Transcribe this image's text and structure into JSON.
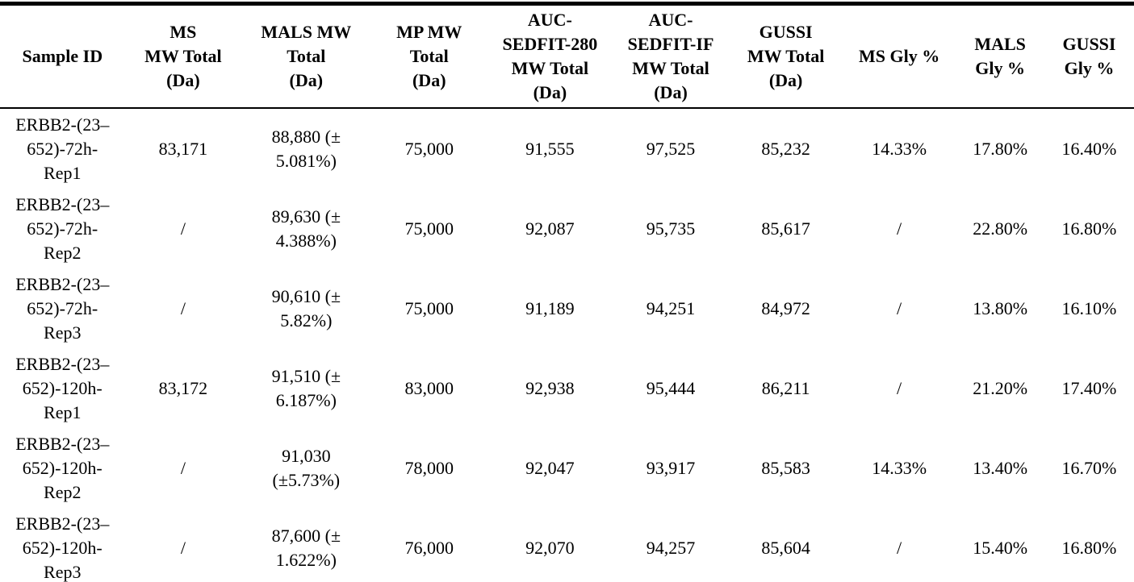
{
  "colors": {
    "text": "#000000",
    "background": "#ffffff",
    "rule": "#000000"
  },
  "table": {
    "headers": [
      "Sample ID",
      "MS\nMW Total\n(Da)",
      "MALS MW\nTotal\n(Da)",
      "MP MW\nTotal\n(Da)",
      "AUC-\nSEDFIT-280\nMW Total\n(Da)",
      "AUC-\nSEDFIT-IF\nMW Total\n(Da)",
      "GUSSI\nMW Total\n(Da)",
      "MS Gly %",
      "MALS\nGly %",
      "GUSSI\nGly %"
    ],
    "rows": [
      [
        "ERBB2-(23–\n652)-72h-\nRep1",
        "83,171",
        "88,880 (±\n5.081%)",
        "75,000",
        "91,555",
        "97,525",
        "85,232",
        "14.33%",
        "17.80%",
        "16.40%"
      ],
      [
        "ERBB2-(23–\n652)-72h-\nRep2",
        "/",
        "89,630 (±\n4.388%)",
        "75,000",
        "92,087",
        "95,735",
        "85,617",
        "/",
        "22.80%",
        "16.80%"
      ],
      [
        "ERBB2-(23–\n652)-72h-\nRep3",
        "/",
        "90,610 (±\n5.82%)",
        "75,000",
        "91,189",
        "94,251",
        "84,972",
        "/",
        "13.80%",
        "16.10%"
      ],
      [
        "ERBB2-(23–\n652)-120h-\nRep1",
        "83,172",
        "91,510 (±\n6.187%)",
        "83,000",
        "92,938",
        "95,444",
        "86,211",
        "/",
        "21.20%",
        "17.40%"
      ],
      [
        "ERBB2-(23–\n652)-120h-\nRep2",
        "/",
        "91,030\n(±5.73%)",
        "78,000",
        "92,047",
        "93,917",
        "85,583",
        "14.33%",
        "13.40%",
        "16.70%"
      ],
      [
        "ERBB2-(23–\n652)-120h-\nRep3",
        "/",
        "87,600 (±\n1.622%)",
        "76,000",
        "92,070",
        "94,257",
        "85,604",
        "/",
        "15.40%",
        "16.80%"
      ]
    ]
  }
}
